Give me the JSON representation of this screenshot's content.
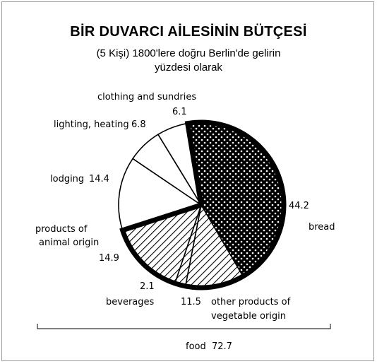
{
  "title": "BİR DUVARCI AİLESİNİN BÜTÇESİ",
  "subtitle_line1": "(5 Kişi)  1800'lere doğru Berlin'de gelirin",
  "subtitle_line2": "yüzdesi olarak",
  "chart_data": {
    "type": "pie",
    "slices": [
      {
        "label": "bread",
        "value": 44.2,
        "pattern": "dots"
      },
      {
        "label": "other products of vegetable origin",
        "value": 11.5,
        "pattern": "diagonal-hatch"
      },
      {
        "label": "beverages",
        "value": 2.1,
        "pattern": "diagonal-hatch"
      },
      {
        "label": "products of animal origin",
        "value": 14.9,
        "pattern": "diagonal-hatch"
      },
      {
        "label": "lodging",
        "value": 14.4,
        "pattern": "white"
      },
      {
        "label": "lighting, heating",
        "value": 6.8,
        "pattern": "white"
      },
      {
        "label": "clothing and sundries",
        "value": 6.1,
        "pattern": "white"
      }
    ],
    "food_bracket": {
      "label": "food",
      "value": 72.7
    }
  },
  "labels": {
    "clothing": "clothing and sundries",
    "clothing_value": "6.1",
    "lighting": "lighting, heating",
    "lighting_value": "6.8",
    "lodging": "lodging",
    "lodging_value": "14.4",
    "animal_line1": "products of",
    "animal_line2": "animal origin",
    "animal_value": "14.9",
    "beverages": "beverages",
    "beverages_value": "2.1",
    "veg_value": "11.5",
    "veg_line1": "other products of",
    "veg_line2": "vegetable origin",
    "bread_value": "44.2",
    "bread": "bread",
    "food": "food",
    "food_value": "72.7"
  }
}
